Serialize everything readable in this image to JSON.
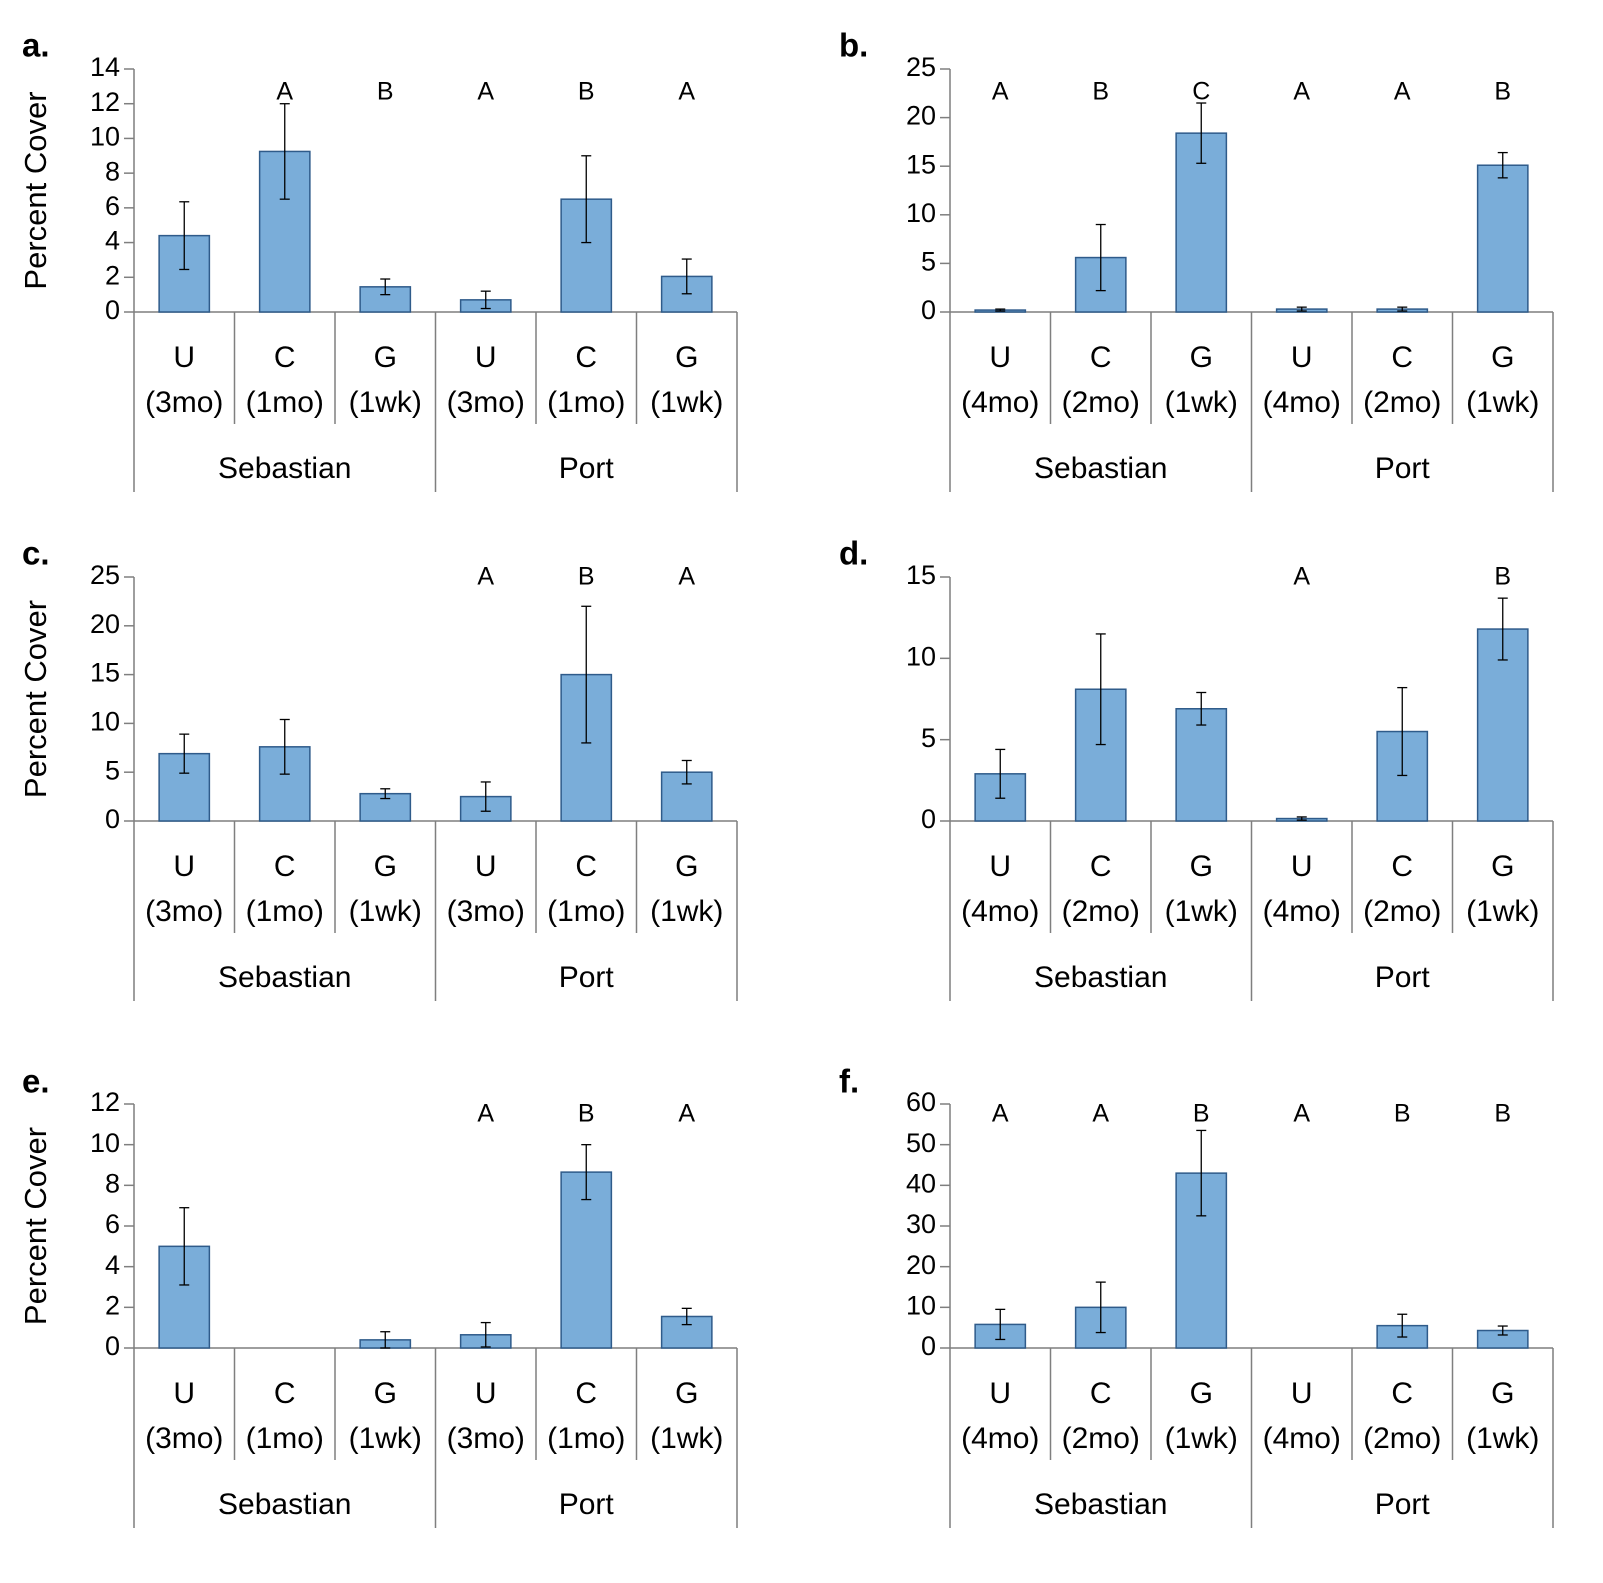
{
  "chart_data": [
    {
      "panel": "a.",
      "type": "bar",
      "ylabel": "Percent Cover",
      "ylim": [
        0,
        14
      ],
      "yticks": [
        0,
        2,
        4,
        6,
        8,
        10,
        12,
        14
      ],
      "groups": [
        "Sebastian",
        "Port"
      ],
      "categories": [
        [
          "U",
          "(3mo)"
        ],
        [
          "C",
          "(1mo)"
        ],
        [
          "G",
          "(1wk)"
        ],
        [
          "U",
          "(3mo)"
        ],
        [
          "C",
          "(1mo)"
        ],
        [
          "G",
          "(1wk)"
        ]
      ],
      "values": [
        4.4,
        9.25,
        1.45,
        0.7,
        6.5,
        2.05
      ],
      "errors": [
        1.95,
        2.75,
        0.45,
        0.5,
        2.5,
        1.0
      ],
      "letters": [
        "",
        "A",
        "B",
        "A",
        "B",
        "A"
      ]
    },
    {
      "panel": "b.",
      "type": "bar",
      "ylabel": "",
      "ylim": [
        0,
        25
      ],
      "yticks": [
        0,
        5,
        10,
        15,
        20,
        25
      ],
      "groups": [
        "Sebastian",
        "Port"
      ],
      "categories": [
        [
          "U",
          "(4mo)"
        ],
        [
          "C",
          "(2mo)"
        ],
        [
          "G",
          "(1wk)"
        ],
        [
          "U",
          "(4mo)"
        ],
        [
          "C",
          "(2mo)"
        ],
        [
          "G",
          "(1wk)"
        ]
      ],
      "values": [
        0.2,
        5.6,
        18.4,
        0.3,
        0.3,
        15.1
      ],
      "errors": [
        0.1,
        3.4,
        3.1,
        0.2,
        0.2,
        1.3
      ],
      "letters": [
        "A",
        "B",
        "C",
        "A",
        "A",
        "B"
      ]
    },
    {
      "panel": "c.",
      "type": "bar",
      "ylabel": "Percent Cover",
      "ylim": [
        0,
        25
      ],
      "yticks": [
        0,
        5,
        10,
        15,
        20,
        25
      ],
      "groups": [
        "Sebastian",
        "Port"
      ],
      "categories": [
        [
          "U",
          "(3mo)"
        ],
        [
          "C",
          "(1mo)"
        ],
        [
          "G",
          "(1wk)"
        ],
        [
          "U",
          "(3mo)"
        ],
        [
          "C",
          "(1mo)"
        ],
        [
          "G",
          "(1wk)"
        ]
      ],
      "values": [
        6.9,
        7.6,
        2.8,
        2.5,
        15.0,
        5.0
      ],
      "errors": [
        2.0,
        2.8,
        0.5,
        1.5,
        7.0,
        1.2
      ],
      "letters": [
        "",
        "",
        "",
        "A",
        "B",
        "A"
      ]
    },
    {
      "panel": "d.",
      "type": "bar",
      "ylabel": "",
      "ylim": [
        0,
        15
      ],
      "yticks": [
        0,
        5,
        10,
        15
      ],
      "groups": [
        "Sebastian",
        "Port"
      ],
      "categories": [
        [
          "U",
          "(4mo)"
        ],
        [
          "C",
          "(2mo)"
        ],
        [
          "G",
          "(1wk)"
        ],
        [
          "U",
          "(4mo)"
        ],
        [
          "C",
          "(2mo)"
        ],
        [
          "G",
          "(1wk)"
        ]
      ],
      "values": [
        2.9,
        8.1,
        6.9,
        0.15,
        5.5,
        11.8
      ],
      "errors": [
        1.5,
        3.4,
        1.0,
        0.1,
        2.7,
        1.9
      ],
      "letters": [
        "",
        "",
        "",
        "A",
        "",
        "B"
      ]
    },
    {
      "panel": "e.",
      "type": "bar",
      "ylabel": "Percent Cover",
      "ylim": [
        0,
        12
      ],
      "yticks": [
        0,
        2,
        4,
        6,
        8,
        10,
        12
      ],
      "groups": [
        "Sebastian",
        "Port"
      ],
      "categories": [
        [
          "U",
          "(3mo)"
        ],
        [
          "C",
          "(1mo)"
        ],
        [
          "G",
          "(1wk)"
        ],
        [
          "U",
          "(3mo)"
        ],
        [
          "C",
          "(1mo)"
        ],
        [
          "G",
          "(1wk)"
        ]
      ],
      "values": [
        5.0,
        0,
        0.4,
        0.65,
        8.65,
        1.55
      ],
      "errors": [
        1.9,
        0,
        0.4,
        0.6,
        1.35,
        0.4
      ],
      "letters": [
        "",
        "",
        "",
        "A",
        "B",
        "A"
      ]
    },
    {
      "panel": "f.",
      "type": "bar",
      "ylabel": "",
      "ylim": [
        0,
        60
      ],
      "yticks": [
        0,
        10,
        20,
        30,
        40,
        50,
        60
      ],
      "groups": [
        "Sebastian",
        "Port"
      ],
      "categories": [
        [
          "U",
          "(4mo)"
        ],
        [
          "C",
          "(2mo)"
        ],
        [
          "G",
          "(1wk)"
        ],
        [
          "U",
          "(4mo)"
        ],
        [
          "C",
          "(2mo)"
        ],
        [
          "G",
          "(1wk)"
        ]
      ],
      "values": [
        5.8,
        10.0,
        43.0,
        0,
        5.5,
        4.3
      ],
      "errors": [
        3.7,
        6.2,
        10.5,
        0,
        2.8,
        1.1
      ],
      "letters": [
        "A",
        "A",
        "B",
        "A",
        "B",
        "B"
      ]
    }
  ],
  "colors": {
    "bar_fill": "#7aadd9",
    "bar_stroke": "#2f5b8a",
    "axis": "#7f7f7f"
  }
}
